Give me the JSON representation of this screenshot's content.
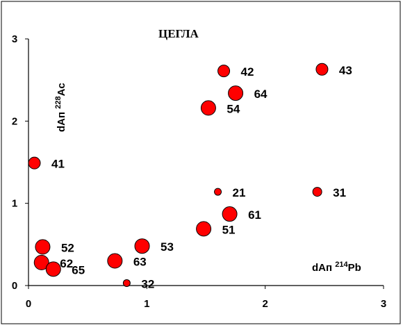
{
  "chart_data": {
    "type": "scatter",
    "title": "ЦЕГЛА",
    "xlabel": {
      "prefix": "dAп ",
      "sup": "214",
      "suffix": "Pb"
    },
    "ylabel": {
      "prefix": "dAп ",
      "sup": "228",
      "suffix": "Ac"
    },
    "xlim": [
      0,
      3
    ],
    "ylim": [
      0,
      3
    ],
    "xticks": [
      "0",
      "1",
      "2",
      "3"
    ],
    "yticks": [
      "0",
      "1",
      "2",
      "3"
    ],
    "grid": false,
    "legend": "none",
    "colors": {
      "marker": "#ff0000",
      "marker_edge": "#000000",
      "frame": "#000000",
      "background": "#ffffff"
    },
    "points": [
      {
        "label": "41",
        "x": 0.05,
        "y": 1.49,
        "size": "medium"
      },
      {
        "label": "42",
        "x": 1.65,
        "y": 2.61,
        "size": "medium"
      },
      {
        "label": "43",
        "x": 2.48,
        "y": 2.63,
        "size": "medium"
      },
      {
        "label": "64",
        "x": 1.75,
        "y": 2.34,
        "size": "large"
      },
      {
        "label": "54",
        "x": 1.52,
        "y": 2.16,
        "size": "large"
      },
      {
        "label": "21",
        "x": 1.6,
        "y": 1.14,
        "size": "small"
      },
      {
        "label": "31",
        "x": 2.44,
        "y": 1.14,
        "size": "medium-small"
      },
      {
        "label": "61",
        "x": 1.7,
        "y": 0.87,
        "size": "large"
      },
      {
        "label": "51",
        "x": 1.48,
        "y": 0.69,
        "size": "large"
      },
      {
        "label": "53",
        "x": 0.96,
        "y": 0.48,
        "size": "large"
      },
      {
        "label": "52",
        "x": 0.12,
        "y": 0.47,
        "size": "large"
      },
      {
        "label": "63",
        "x": 0.73,
        "y": 0.3,
        "size": "large"
      },
      {
        "label": "62",
        "x": 0.11,
        "y": 0.28,
        "size": "large"
      },
      {
        "label": "65",
        "x": 0.21,
        "y": 0.2,
        "size": "large"
      },
      {
        "label": "32",
        "x": 0.83,
        "y": 0.03,
        "size": "small"
      }
    ]
  }
}
